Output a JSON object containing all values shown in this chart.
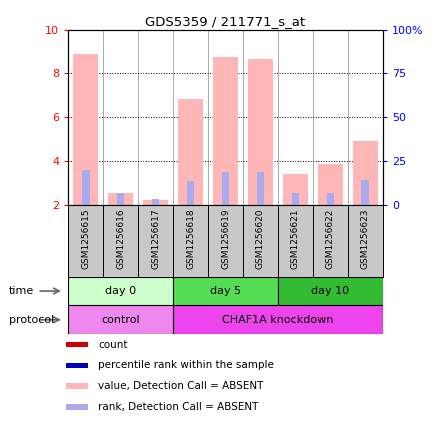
{
  "title": "GDS5359 / 211771_s_at",
  "samples": [
    "GSM1256615",
    "GSM1256616",
    "GSM1256617",
    "GSM1256618",
    "GSM1256619",
    "GSM1256620",
    "GSM1256621",
    "GSM1256622",
    "GSM1256623"
  ],
  "bar_values": [
    8.9,
    2.55,
    2.2,
    6.85,
    8.75,
    8.65,
    3.4,
    3.85,
    4.9
  ],
  "rank_values": [
    3.6,
    2.55,
    2.25,
    3.1,
    3.5,
    3.5,
    2.55,
    2.55,
    3.15
  ],
  "bar_color": "#FFB6B6",
  "rank_color": "#AAAAEE",
  "ylim_left": [
    2,
    10
  ],
  "ylim_right": [
    0,
    100
  ],
  "yticks_left": [
    2,
    4,
    6,
    8,
    10
  ],
  "yticks_right": [
    0,
    25,
    50,
    75,
    100
  ],
  "ytick_labels_right": [
    "0",
    "25",
    "50",
    "75",
    "100%"
  ],
  "time_rows": [
    {
      "label": "day 0",
      "start": 0,
      "end": 3,
      "color": "#CCFFCC"
    },
    {
      "label": "day 5",
      "start": 3,
      "end": 6,
      "color": "#55DD55"
    },
    {
      "label": "day 10",
      "start": 6,
      "end": 9,
      "color": "#33BB33"
    }
  ],
  "prot_rows": [
    {
      "label": "control",
      "start": 0,
      "end": 3,
      "color": "#EE88EE"
    },
    {
      "label": "CHAF1A knockdown",
      "start": 3,
      "end": 9,
      "color": "#EE44EE"
    }
  ],
  "legend_items": [
    {
      "color": "#CC0000",
      "label": "count"
    },
    {
      "color": "#0000BB",
      "label": "percentile rank within the sample"
    },
    {
      "color": "#FFB6B6",
      "label": "value, Detection Call = ABSENT"
    },
    {
      "color": "#AAAAEE",
      "label": "rank, Detection Call = ABSENT"
    }
  ],
  "label_time": "time",
  "label_protocol": "protocol",
  "bar_width": 0.7,
  "rank_bar_width": 0.22
}
